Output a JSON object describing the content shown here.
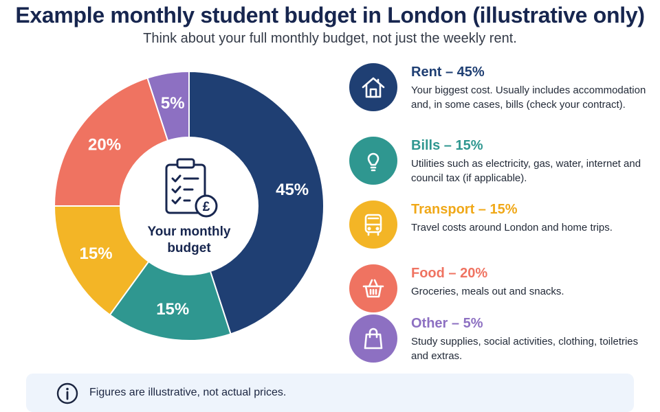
{
  "header": {
    "title": "Example monthly student budget in London (illustrative only)",
    "subtitle": "Think about your full monthly budget, not just the weekly rent."
  },
  "chart_data": {
    "type": "pie",
    "center_label": [
      "Your monthly",
      "budget"
    ],
    "center_icon": "clipboard-checklist-pound-icon",
    "series": [
      {
        "name": "Rent",
        "value": 45,
        "label": "45%",
        "color": "#1f3f73"
      },
      {
        "name": "Bills",
        "value": 15,
        "label": "15%",
        "color": "#2f9790"
      },
      {
        "name": "Transport",
        "value": 15,
        "label": "15%",
        "color": "#f3b526"
      },
      {
        "name": "Food",
        "value": 20,
        "label": "20%",
        "color": "#ef7361"
      },
      {
        "name": "Other",
        "value": 5,
        "label": "5%",
        "color": "#8d70c2"
      }
    ]
  },
  "legend": [
    {
      "title": "Rent – 45%",
      "description": "Your biggest cost. Usually includes accommodation and, in some cases, bills (check your contract).",
      "icon": "house-icon",
      "color": "#1f3f73"
    },
    {
      "title": "Bills – 15%",
      "description": "Utilities such as electricity, gas, water, internet and council tax (if applicable).",
      "icon": "lightbulb-icon",
      "color": "#2f9790"
    },
    {
      "title": "Transport – 15%",
      "description": "Travel costs around London and home trips.",
      "icon": "bus-icon",
      "color": "#f3b526"
    },
    {
      "title": "Food – 20%",
      "description": "Groceries, meals out and snacks.",
      "icon": "basket-icon",
      "color": "#ef7361"
    },
    {
      "title": "Other – 5%",
      "description": "Study supplies, social activities, clothing, toiletries and extras.",
      "icon": "shopping-bag-icon",
      "color": "#8d70c2"
    }
  ],
  "note": {
    "text": "Figures are illustrative, not actual prices.",
    "icon": "info-icon"
  }
}
